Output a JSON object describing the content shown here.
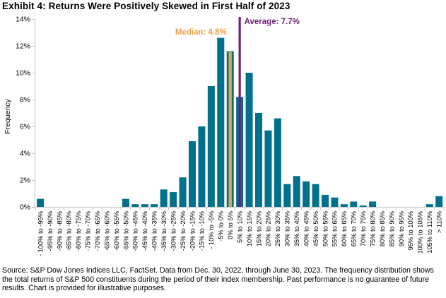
{
  "title": "Exhibit 4: Returns Were Positively Skewed in First Half of 2023",
  "footnote": "Source: S&P Dow Jones Indices LLC, FactSet. Data from Dec. 30, 2022, through June 30, 2023. The frequency distribution shows the total returns of S&P 500 constituents during the period of their index membership. Past performance is no guarantee of future results. Chart is provided for illustrative purposes.",
  "chart_data": {
    "type": "bar",
    "title": "Exhibit 4: Returns Were Positively Skewed in First Half of 2023",
    "xlabel": "",
    "ylabel": "Frequency",
    "ylim": [
      0,
      14
    ],
    "ytick_step": 2,
    "ytick_suffix": "%",
    "grid": false,
    "legend": "none",
    "bar_color": "#00708C",
    "axis_color": "#C6C6C6",
    "text_color": "#000000",
    "categories": [
      "- 100% to -95%",
      "-95% to -90%",
      "-90% to -85%",
      "-85% to -80%",
      "-80% to -75%",
      "-75% to -70%",
      "-70% to -65%",
      "-65% to -60%",
      "-60% to -55%",
      "-55% to -50%",
      "-50% to -45%",
      "-45% to -40%",
      "-40% to -35%",
      "-35% to -30%",
      "-30% to -25%",
      "-25% to -20%",
      "-20% to -15%",
      "-15% to -10%",
      "- 10% to -5%",
      "-5% to 0%",
      "0% to 5%",
      "5% to 10%",
      "10% to 15%",
      "15% to 20%",
      "20% to 25%",
      "25% to 30%",
      "30% to 35%",
      "35% to 40%",
      "40% to 45%",
      "45% to 50%",
      "50% to 55%",
      "55% to 60%",
      "60% to 65%",
      "65% to 70%",
      "70% to 75%",
      "75% to 80%",
      "80% to 85%",
      "85% to 90%",
      "90% to 95%",
      "95% to 100%",
      "100% to 105%",
      "105% to 110%",
      "> 110%"
    ],
    "values": [
      0.6,
      0,
      0,
      0,
      0,
      0,
      0,
      0,
      0,
      0.6,
      0.2,
      0.2,
      0.2,
      1.3,
      1.1,
      2.2,
      4.9,
      6.0,
      9.0,
      12.6,
      11.6,
      8.2,
      10.0,
      7.0,
      5.7,
      6.6,
      1.7,
      2.3,
      1.9,
      1.7,
      0.9,
      0.7,
      0.2,
      0.4,
      0.1,
      0.4,
      0,
      0,
      0,
      0,
      0,
      0.2,
      0.8
    ],
    "annotations": {
      "median": {
        "label": "Median: 4.8%",
        "value": 4.8,
        "bin_index": 20,
        "color": "#EDA247"
      },
      "average": {
        "label": "Average: 7.7%",
        "value": 7.7,
        "bin_index": 21,
        "color": "#6D2077"
      }
    }
  }
}
